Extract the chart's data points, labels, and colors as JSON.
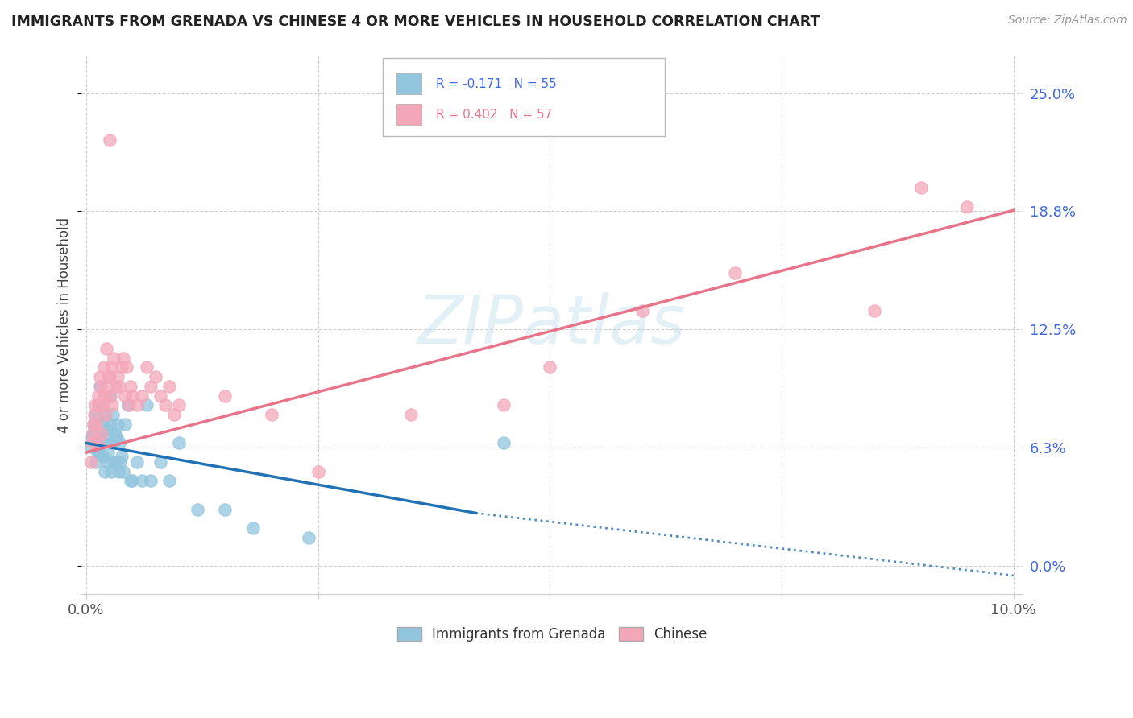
{
  "title": "IMMIGRANTS FROM GRENADA VS CHINESE 4 OR MORE VEHICLES IN HOUSEHOLD CORRELATION CHART",
  "source": "Source: ZipAtlas.com",
  "ylabel": "4 or more Vehicles in Household",
  "ytick_values": [
    0.0,
    6.25,
    12.5,
    18.75,
    25.0
  ],
  "ytick_labels": [
    "0.0%",
    "6.3%",
    "12.5%",
    "18.8%",
    "25.0%"
  ],
  "xlim": [
    0.0,
    10.0
  ],
  "ylim": [
    -1.5,
    27.0
  ],
  "grenada_color": "#92C5DE",
  "chinese_color": "#F4A7B9",
  "grenada_edge_color": "#6BAED6",
  "chinese_edge_color": "#FC8D8D",
  "grenada_line_color": "#2171B5",
  "chinese_line_color": "#E8748A",
  "legend_text_grenada": "R = -0.171   N = 55",
  "legend_text_chinese": "R = 0.402   N = 57",
  "watermark_text": "ZIPatlas",
  "background_color": "#ffffff",
  "grid_color": "#d0d0d0",
  "right_tick_color": "#4169E1",
  "grenada_line_x0": 0.0,
  "grenada_line_y0": 6.5,
  "grenada_line_x1": 4.2,
  "grenada_line_y1": 2.8,
  "grenada_dash_x0": 4.2,
  "grenada_dash_y0": 2.8,
  "grenada_dash_x1": 10.0,
  "grenada_dash_y1": -0.5,
  "chinese_line_x0": 0.0,
  "chinese_line_y0": 6.0,
  "chinese_line_x1": 10.0,
  "chinese_line_y1": 18.8,
  "grenada_x": [
    0.05,
    0.06,
    0.07,
    0.08,
    0.09,
    0.1,
    0.1,
    0.11,
    0.12,
    0.12,
    0.13,
    0.14,
    0.15,
    0.16,
    0.17,
    0.18,
    0.19,
    0.2,
    0.2,
    0.21,
    0.22,
    0.23,
    0.24,
    0.25,
    0.26,
    0.27,
    0.28,
    0.29,
    0.3,
    0.3,
    0.31,
    0.32,
    0.33,
    0.34,
    0.35,
    0.36,
    0.37,
    0.38,
    0.4,
    0.42,
    0.45,
    0.48,
    0.5,
    0.55,
    0.6,
    0.65,
    0.7,
    0.8,
    0.9,
    1.0,
    1.2,
    1.5,
    1.8,
    2.4,
    4.5
  ],
  "grenada_y": [
    6.3,
    6.8,
    7.0,
    7.5,
    7.2,
    6.5,
    8.0,
    5.5,
    6.0,
    7.8,
    8.5,
    6.0,
    9.5,
    7.0,
    6.5,
    5.8,
    7.5,
    6.8,
    5.0,
    8.0,
    7.2,
    5.5,
    6.0,
    9.0,
    7.5,
    5.0,
    6.5,
    8.0,
    6.5,
    5.5,
    7.0,
    5.5,
    6.8,
    7.5,
    5.0,
    6.5,
    5.5,
    5.8,
    5.0,
    7.5,
    8.5,
    4.5,
    4.5,
    5.5,
    4.5,
    8.5,
    4.5,
    5.5,
    4.5,
    6.5,
    3.0,
    3.0,
    2.0,
    1.5,
    6.5
  ],
  "chinese_x": [
    0.05,
    0.06,
    0.07,
    0.08,
    0.09,
    0.1,
    0.11,
    0.12,
    0.13,
    0.14,
    0.15,
    0.16,
    0.17,
    0.18,
    0.19,
    0.2,
    0.21,
    0.22,
    0.23,
    0.24,
    0.25,
    0.26,
    0.27,
    0.28,
    0.3,
    0.32,
    0.34,
    0.36,
    0.38,
    0.4,
    0.42,
    0.44,
    0.46,
    0.48,
    0.5,
    0.55,
    0.6,
    0.65,
    0.7,
    0.75,
    0.8,
    0.85,
    0.9,
    0.95,
    1.0,
    1.5,
    2.0,
    2.5,
    3.5,
    4.5,
    5.0,
    6.0,
    7.0,
    8.5,
    9.0,
    9.5,
    0.25
  ],
  "chinese_y": [
    5.5,
    6.5,
    7.0,
    7.5,
    8.0,
    8.5,
    7.5,
    6.5,
    9.0,
    8.5,
    10.0,
    9.5,
    7.0,
    8.5,
    10.5,
    9.0,
    8.0,
    11.5,
    9.5,
    10.0,
    10.0,
    9.0,
    10.5,
    8.5,
    11.0,
    9.5,
    10.0,
    9.5,
    10.5,
    11.0,
    9.0,
    10.5,
    8.5,
    9.5,
    9.0,
    8.5,
    9.0,
    10.5,
    9.5,
    10.0,
    9.0,
    8.5,
    9.5,
    8.0,
    8.5,
    9.0,
    8.0,
    5.0,
    8.0,
    8.5,
    10.5,
    13.5,
    15.5,
    13.5,
    20.0,
    19.0,
    22.5
  ]
}
